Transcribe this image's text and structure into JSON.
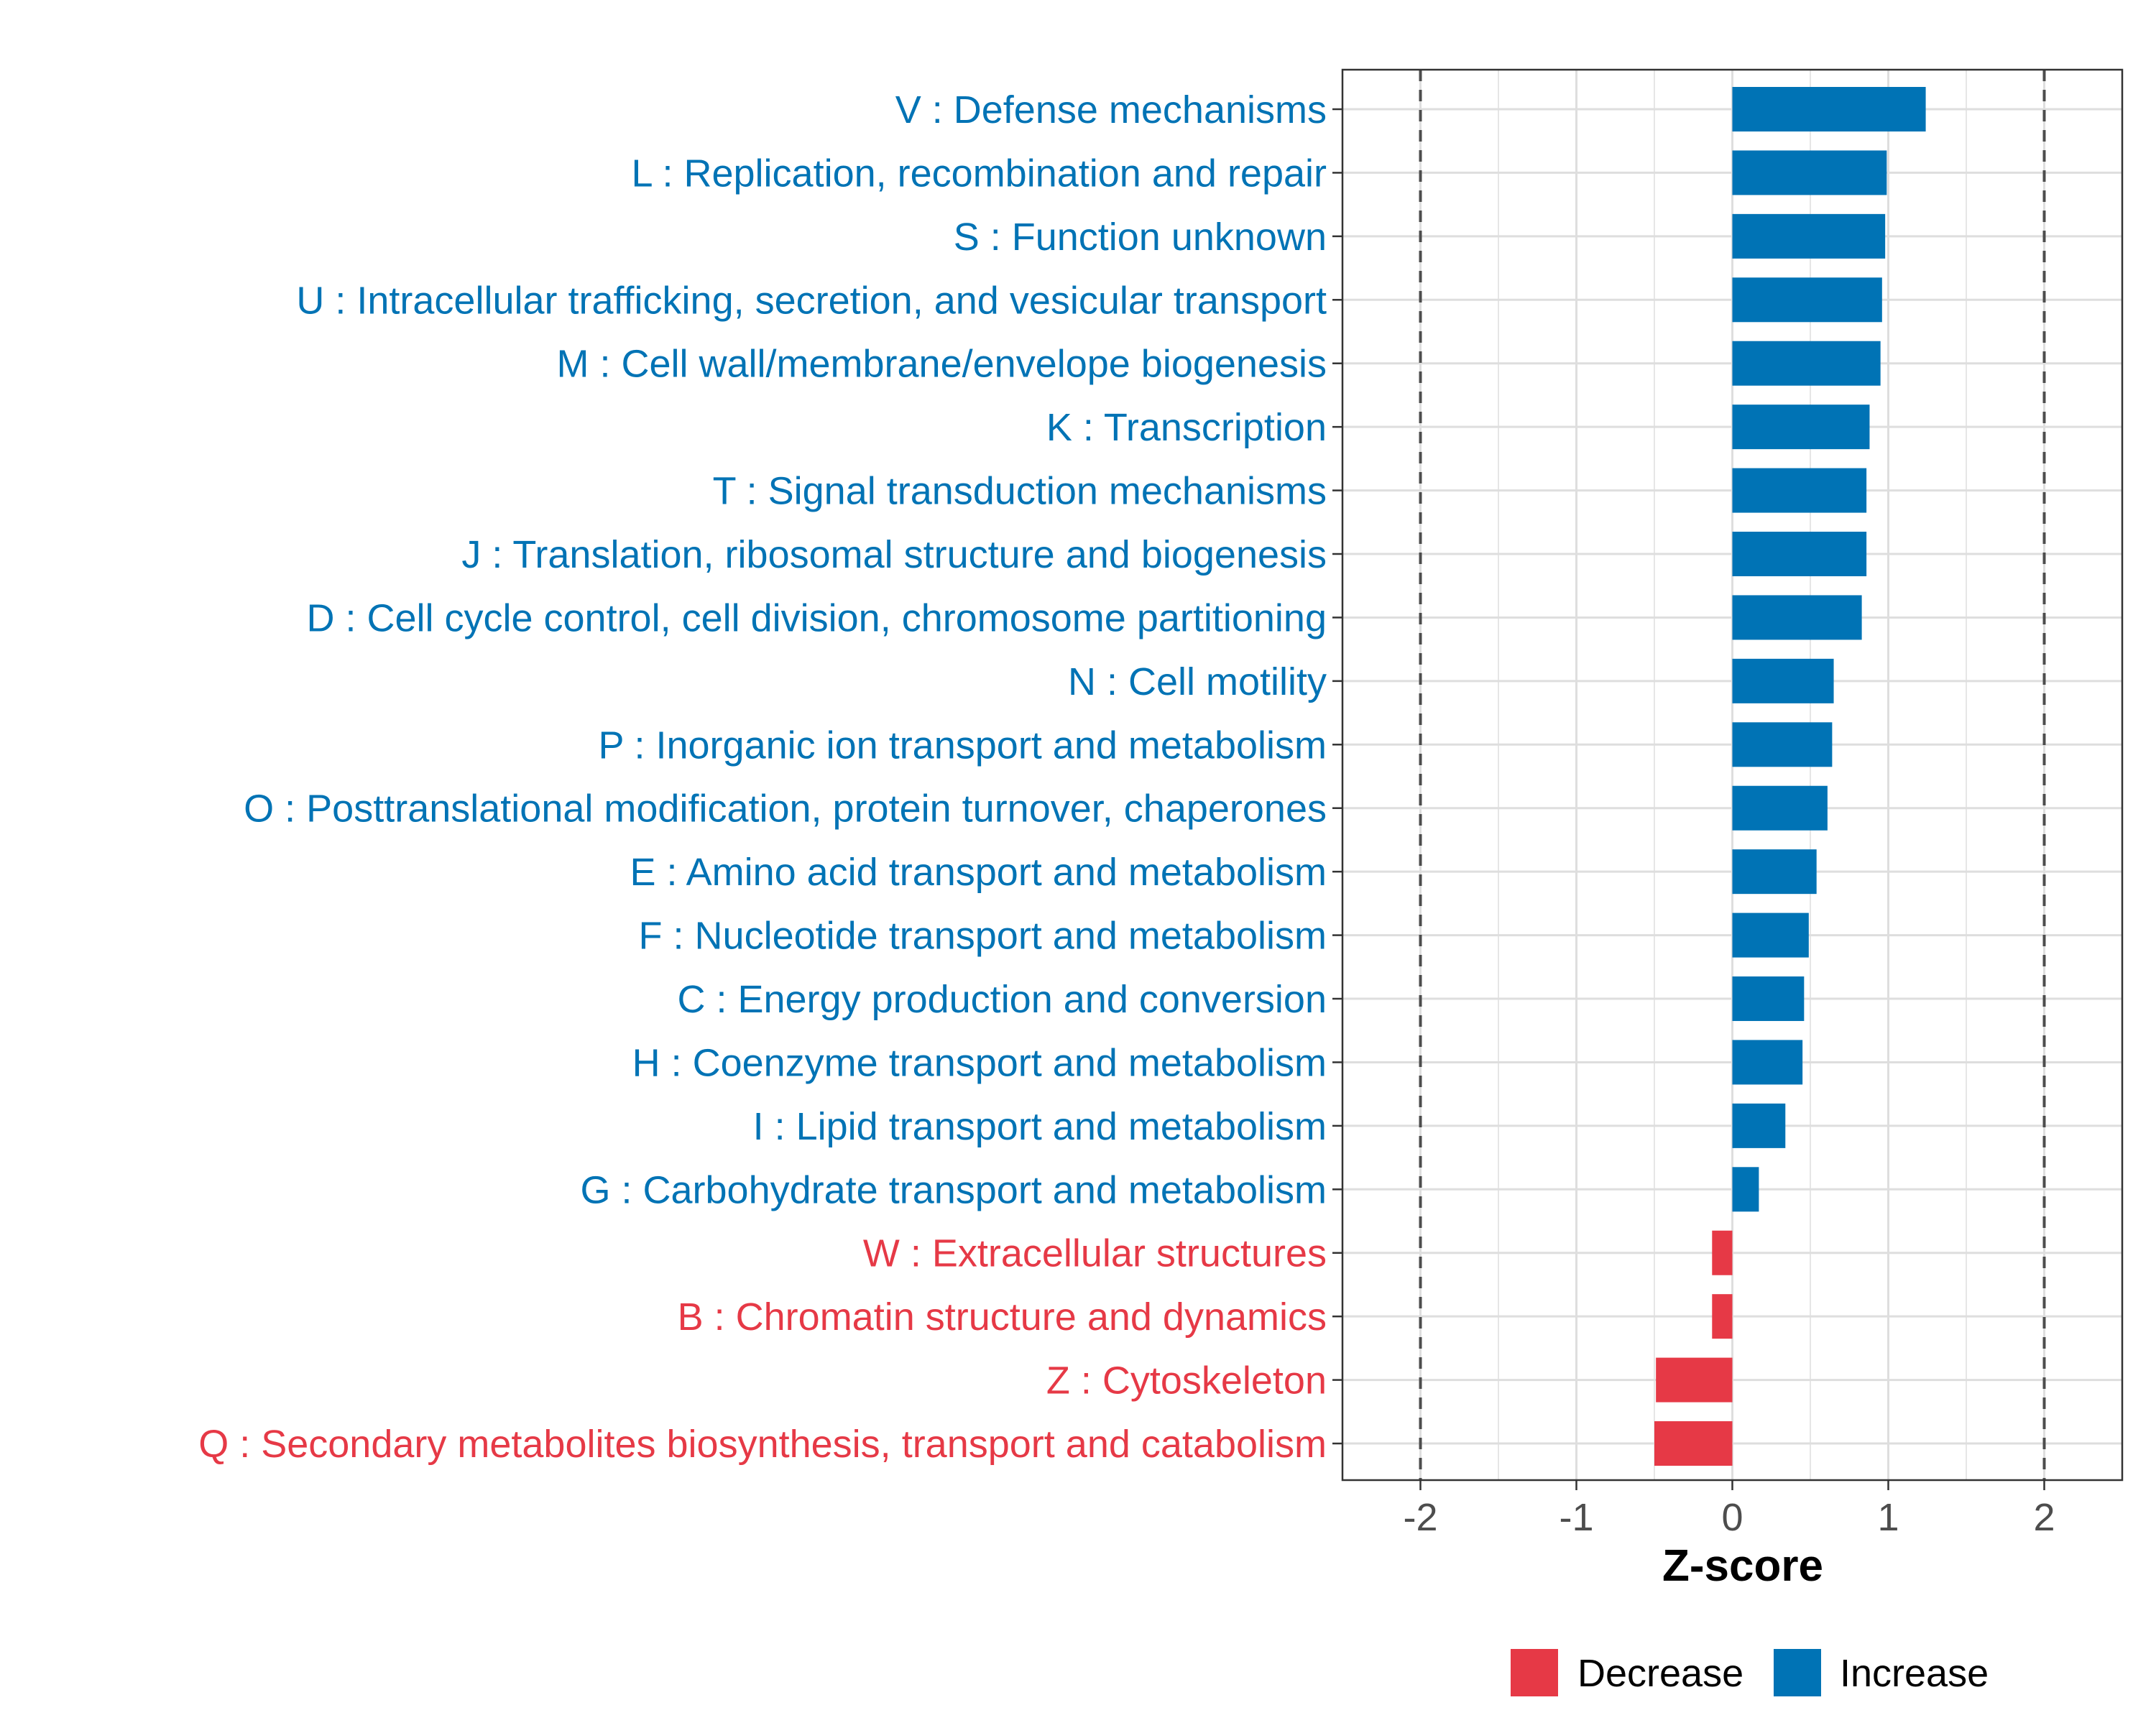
{
  "chart_data": {
    "type": "bar",
    "orientation": "horizontal",
    "xlabel": "Z-score",
    "xlim": [
      -2.5,
      2.5
    ],
    "xticks": [
      -2,
      -1,
      0,
      1,
      2
    ],
    "xtick_labels": [
      "-2",
      "-1",
      "0",
      "1",
      "2"
    ],
    "reference_lines": [
      -2,
      2
    ],
    "grid": true,
    "legend_placement": "bottom",
    "colors": {
      "Increase": "#0073B5",
      "Decrease": "#E63946"
    },
    "legend": [
      {
        "label": "Decrease",
        "color": "#E63946"
      },
      {
        "label": "Increase",
        "color": "#0073B5"
      }
    ],
    "categories": [
      "V : Defense mechanisms",
      "L : Replication, recombination and repair",
      "S : Function unknown",
      "U : Intracellular trafficking, secretion, and vesicular transport",
      "M : Cell wall/membrane/envelope biogenesis",
      "K : Transcription",
      "T : Signal transduction mechanisms",
      "J : Translation, ribosomal structure and biogenesis",
      "D : Cell cycle control, cell division, chromosome partitioning",
      "N : Cell motility",
      "P : Inorganic ion transport and metabolism",
      "O : Posttranslational modification, protein turnover, chaperones",
      "E : Amino acid transport and metabolism",
      "F : Nucleotide transport and metabolism",
      "C : Energy production and conversion",
      "H : Coenzyme transport and metabolism",
      "I : Lipid transport and metabolism",
      "G : Carbohydrate transport and metabolism",
      "W : Extracellular structures",
      "B : Chromatin structure and dynamics",
      "Z : Cytoskeleton",
      "Q : Secondary metabolites biosynthesis, transport and catabolism"
    ],
    "values": [
      1.24,
      0.99,
      0.98,
      0.96,
      0.95,
      0.88,
      0.86,
      0.86,
      0.83,
      0.65,
      0.64,
      0.61,
      0.54,
      0.49,
      0.46,
      0.45,
      0.34,
      0.17,
      -0.13,
      -0.13,
      -0.49,
      -0.5
    ],
    "direction": [
      "Increase",
      "Increase",
      "Increase",
      "Increase",
      "Increase",
      "Increase",
      "Increase",
      "Increase",
      "Increase",
      "Increase",
      "Increase",
      "Increase",
      "Increase",
      "Increase",
      "Increase",
      "Increase",
      "Increase",
      "Increase",
      "Decrease",
      "Decrease",
      "Decrease",
      "Decrease"
    ]
  }
}
